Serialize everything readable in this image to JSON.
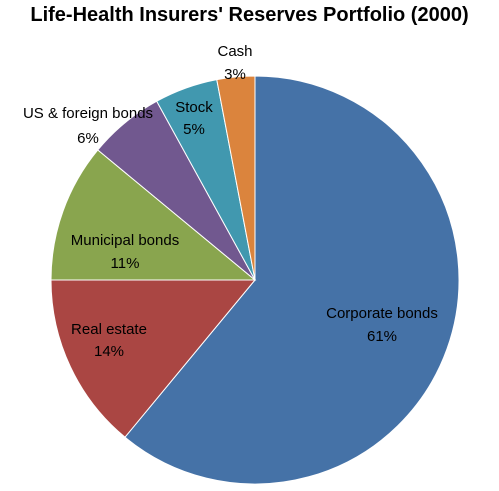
{
  "chart_data": {
    "type": "pie",
    "title": "Life-Health Insurers' Reserves Portfolio (2000)",
    "slices": [
      {
        "name": "Corporate bonds",
        "value": 61,
        "value_label": "61%",
        "color": "#4572A7"
      },
      {
        "name": "Real estate",
        "value": 14,
        "value_label": "14%",
        "color": "#AA4643"
      },
      {
        "name": "Municipal bonds",
        "value": 11,
        "value_label": "11%",
        "color": "#89A54E"
      },
      {
        "name": "US & foreign bonds",
        "value": 6,
        "value_label": "6%",
        "color": "#71588F"
      },
      {
        "name": "Stock",
        "value": 5,
        "value_label": "5%",
        "color": "#4198AF"
      },
      {
        "name": "Cash",
        "value": 3,
        "value_label": "3%",
        "color": "#DB843D"
      }
    ],
    "start": "12 o'clock",
    "direction": "clockwise",
    "legend": "none"
  }
}
